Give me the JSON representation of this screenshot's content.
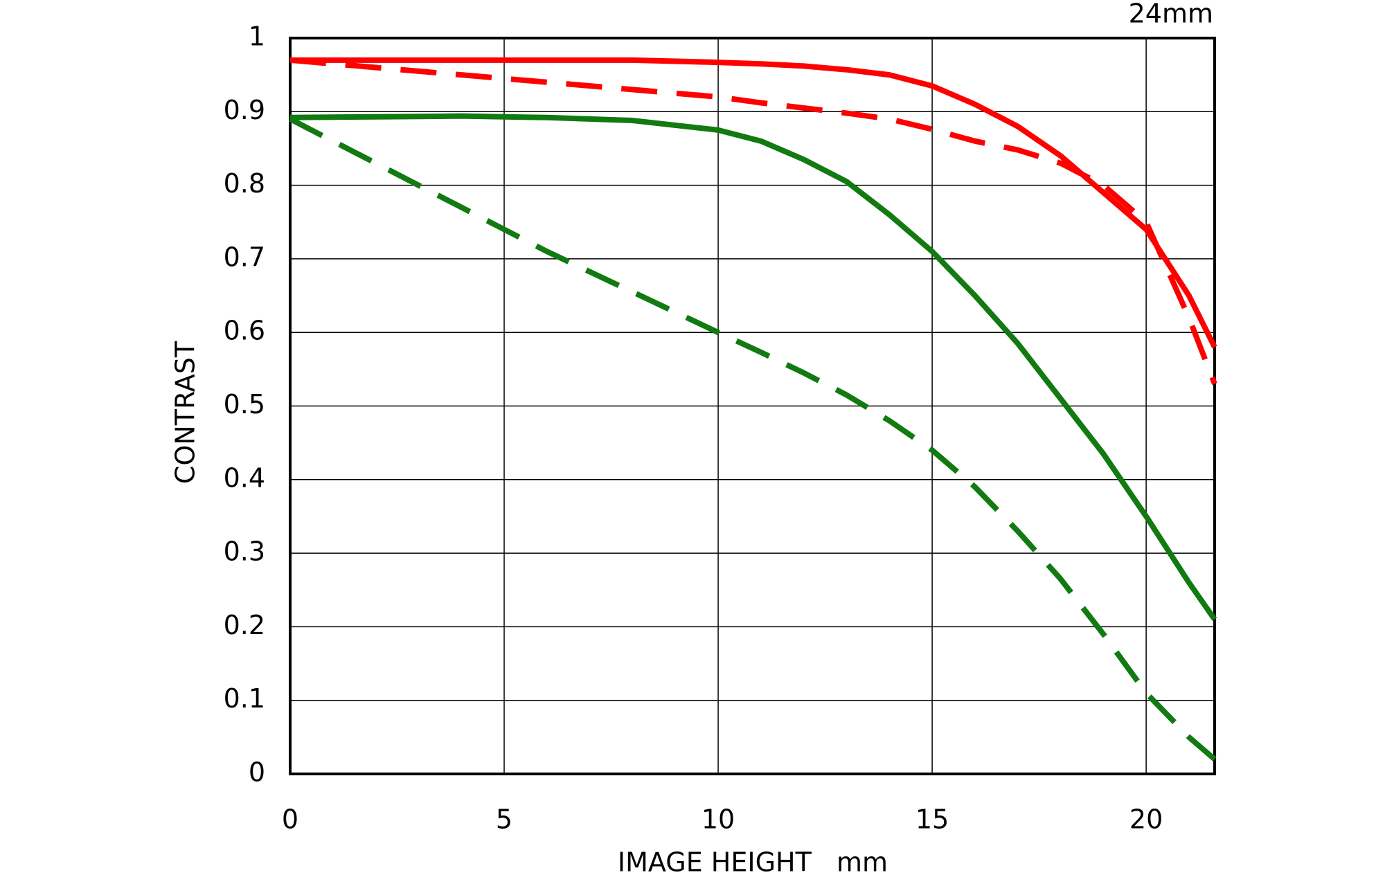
{
  "chart_data": {
    "type": "line",
    "title": "24mm",
    "x_label": "IMAGE HEIGHT   mm",
    "y_label": "CONTRAST",
    "x": [
      0,
      2,
      4,
      6,
      8,
      10,
      11,
      12,
      13,
      14,
      15,
      16,
      17,
      18,
      19,
      20,
      21,
      21.6
    ],
    "series": [
      {
        "color": "#ff0000",
        "dashed": false,
        "values": [
          0.97,
          0.97,
          0.97,
          0.97,
          0.97,
          0.967,
          0.965,
          0.962,
          0.957,
          0.95,
          0.935,
          0.91,
          0.88,
          0.84,
          0.79,
          0.74,
          0.65,
          0.58
        ]
      },
      {
        "color": "#ff0000",
        "dashed": true,
        "values": [
          0.97,
          0.96,
          0.95,
          0.94,
          0.93,
          0.92,
          0.912,
          0.905,
          0.898,
          0.89,
          0.876,
          0.86,
          0.848,
          0.83,
          0.8,
          0.75,
          0.62,
          0.53
        ]
      },
      {
        "color": "#117a11",
        "dashed": false,
        "values": [
          0.892,
          0.893,
          0.894,
          0.892,
          0.888,
          0.875,
          0.86,
          0.835,
          0.805,
          0.76,
          0.71,
          0.65,
          0.585,
          0.51,
          0.435,
          0.35,
          0.26,
          0.21
        ]
      },
      {
        "color": "#117a11",
        "dashed": true,
        "values": [
          0.89,
          0.83,
          0.77,
          0.71,
          0.655,
          0.6,
          0.573,
          0.545,
          0.515,
          0.48,
          0.44,
          0.39,
          0.33,
          0.265,
          0.19,
          0.11,
          0.05,
          0.02
        ]
      }
    ],
    "xlim": [
      0,
      21.6
    ],
    "ylim": [
      0,
      1
    ],
    "xticks": [
      0,
      5,
      10,
      15,
      20
    ],
    "yticks": [
      0,
      0.1,
      0.2,
      0.3,
      0.4,
      0.5,
      0.6,
      0.7,
      0.8,
      0.9,
      1
    ],
    "grid": true
  }
}
